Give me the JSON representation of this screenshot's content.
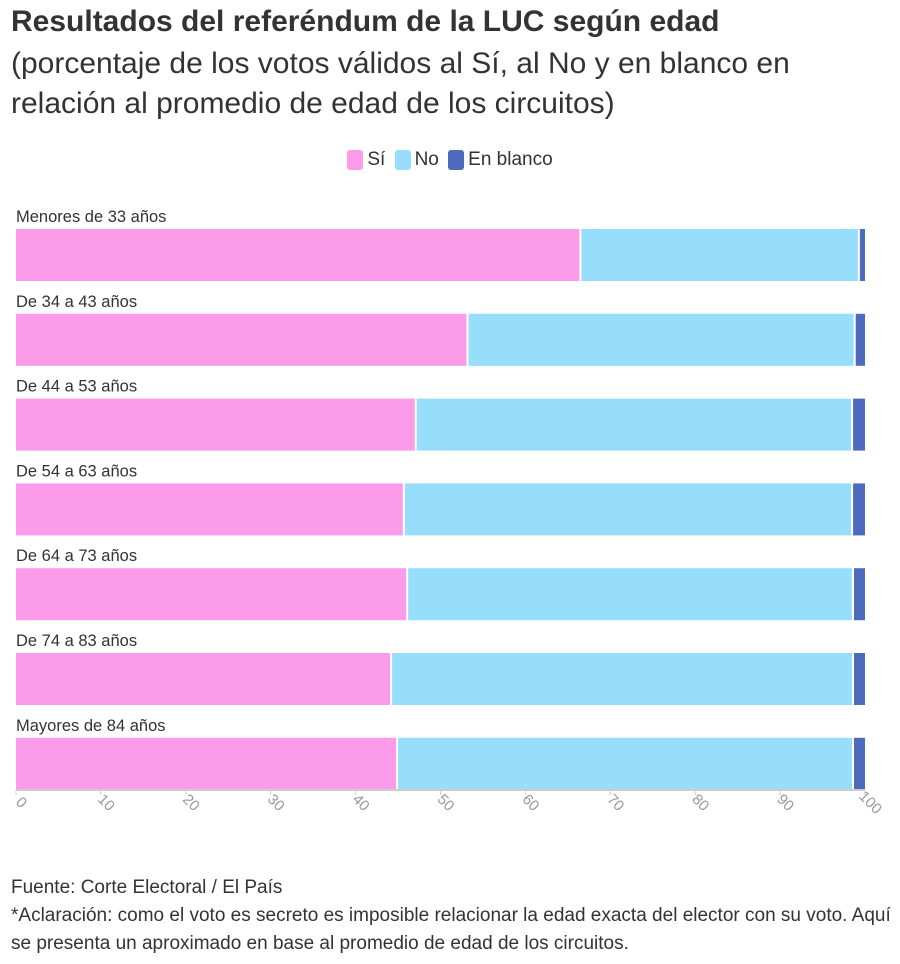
{
  "title": "Resultados del referéndum de la LUC según edad",
  "subtitle": "(porcentaje de los votos válidos al Sí, al No y en blanco en relación al promedio de edad de los circuitos)",
  "source": "Fuente: Corte Electoral / El País",
  "note": "*Aclaración: como el voto es secreto es imposible relacionar la edad exacta del elector con su voto. Aquí se presenta un aproximado en base al promedio de edad de los circuitos.",
  "legend": [
    {
      "label": "Sí",
      "color": "#fb9bea"
    },
    {
      "label": "No",
      "color": "#96defc"
    },
    {
      "label": "En blanco",
      "color": "#4e6abd"
    }
  ],
  "chart_data": {
    "type": "bar",
    "orientation": "horizontal",
    "stacked": true,
    "categories": [
      "Menores de 33 años",
      "De 34 a 43 años",
      "De 44 a 53 años",
      "De 54 a 63 años",
      "De 64 a 73 años",
      "De 74 a 83 años",
      "Mayores de 84 años"
    ],
    "series": [
      {
        "name": "Sí",
        "color": "#fb9bea",
        "values": [
          66.6,
          53.3,
          47.2,
          45.8,
          46.2,
          44.3,
          45.0
        ]
      },
      {
        "name": "No",
        "color": "#96defc",
        "values": [
          32.8,
          45.6,
          51.4,
          52.8,
          52.5,
          54.4,
          53.7
        ]
      },
      {
        "name": "En blanco",
        "color": "#4e6abd",
        "values": [
          0.6,
          1.1,
          1.4,
          1.4,
          1.3,
          1.3,
          1.3
        ]
      }
    ],
    "xlim": [
      0,
      100
    ],
    "xticks": [
      "0",
      "10",
      "20",
      "30",
      "40",
      "50",
      "60",
      "70",
      "80",
      "90",
      "100"
    ],
    "grid": false,
    "legend_position": "top-center"
  }
}
